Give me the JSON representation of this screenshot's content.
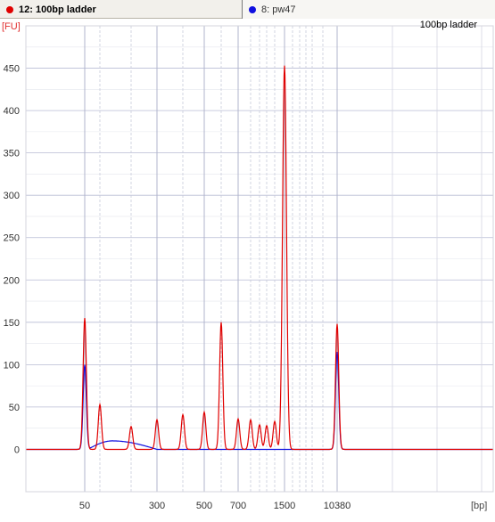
{
  "tabs": [
    {
      "label": "12: 100bp ladder",
      "color": "#e00000",
      "active": true
    },
    {
      "label": "8: pw47",
      "color": "#1010e0",
      "active": false
    }
  ],
  "chart_data": {
    "type": "line",
    "title": "100bp ladder",
    "ylabel": "[FU]",
    "xlabel": "[bp]",
    "ylim": [
      -50,
      500
    ],
    "yticks": [
      0,
      50,
      100,
      150,
      200,
      250,
      300,
      350,
      400,
      450
    ],
    "x_axis": "calibrated base-pair scale (non-linear)",
    "x_ticks": [
      50,
      300,
      500,
      700,
      1500,
      10380
    ],
    "ladder_peaks_bp": [
      50,
      100,
      200,
      300,
      400,
      500,
      600,
      700,
      800,
      900,
      1000,
      1200,
      1500,
      2000,
      3000,
      4000,
      5000,
      7000,
      10380
    ],
    "grid": true,
    "series": [
      {
        "name": "12: 100bp ladder",
        "color": "#e00000",
        "baseline": 0,
        "peaks": [
          {
            "bp": 50,
            "fu": 155
          },
          {
            "bp": 100,
            "fu": 53
          },
          {
            "bp": 200,
            "fu": 27
          },
          {
            "bp": 300,
            "fu": 35
          },
          {
            "bp": 400,
            "fu": 41
          },
          {
            "bp": 500,
            "fu": 44
          },
          {
            "bp": 600,
            "fu": 150
          },
          {
            "bp": 700,
            "fu": 36
          },
          {
            "bp": 800,
            "fu": 35
          },
          {
            "bp": 900,
            "fu": 29
          },
          {
            "bp": 1000,
            "fu": 28
          },
          {
            "bp": 1200,
            "fu": 33
          },
          {
            "bp": 1500,
            "fu": 453
          },
          {
            "bp": 10380,
            "fu": 148
          }
        ]
      },
      {
        "name": "8: pw47",
        "color": "#1010e0",
        "baseline": 0,
        "peaks": [
          {
            "bp": 50,
            "fu": 100
          },
          {
            "bp": 10380,
            "fu": 115
          }
        ],
        "broad_hump": {
          "from_bp": 60,
          "max_bp": 140,
          "to_bp": 300,
          "fu": 10
        }
      }
    ]
  }
}
